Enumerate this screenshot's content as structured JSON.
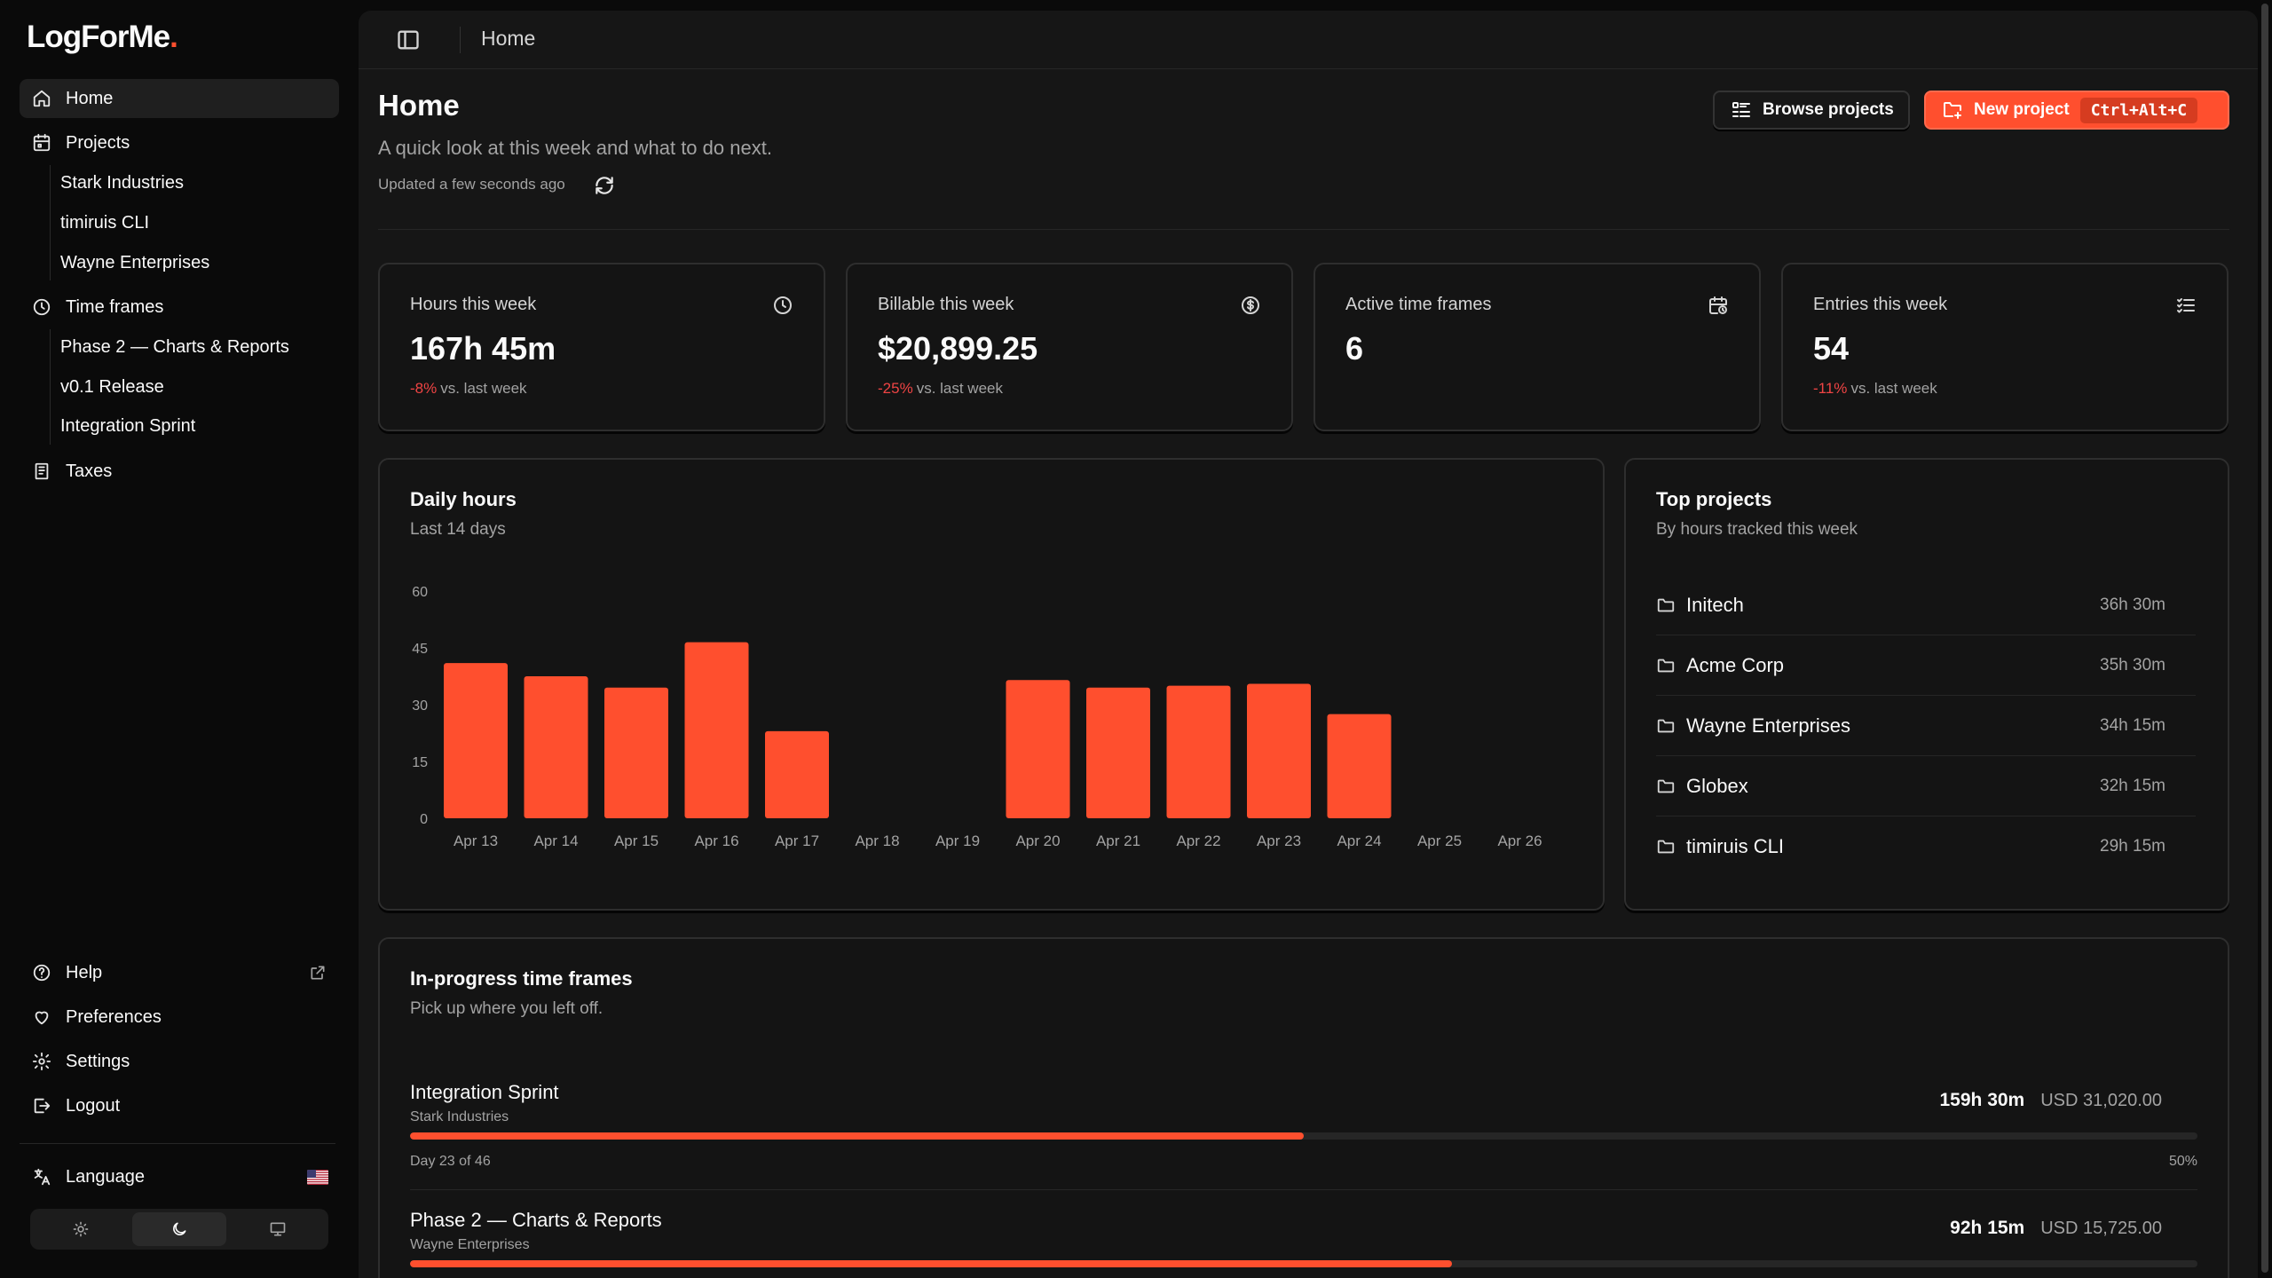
{
  "app": {
    "logo_text": "LogForMe",
    "logo_dot": "."
  },
  "sidebar": {
    "items": [
      {
        "label": "Home",
        "icon": "home-icon"
      },
      {
        "label": "Projects",
        "icon": "calendar-icon"
      },
      {
        "label": "Time frames",
        "icon": "clock-icon"
      },
      {
        "label": "Taxes",
        "icon": "receipt-icon"
      }
    ],
    "projects": [
      "Stark Industries",
      "timiruis CLI",
      "Wayne Enterprises"
    ],
    "time_frames": [
      "Phase 2 — Charts & Reports",
      "v0.1 Release",
      "Integration Sprint"
    ],
    "footer": {
      "help": "Help",
      "preferences": "Preferences",
      "settings": "Settings",
      "logout": "Logout",
      "language": "Language"
    },
    "theme_options": [
      "light",
      "dark",
      "system"
    ],
    "theme_selected": "dark"
  },
  "topbar": {
    "breadcrumb": "Home"
  },
  "header": {
    "title": "Home",
    "subtitle": "A quick look at this week and what to do next.",
    "updated": "Updated a few seconds ago",
    "browse_label": "Browse projects",
    "new_label": "New project",
    "new_shortcut": "Ctrl+Alt+C"
  },
  "stats": [
    {
      "label": "Hours this week",
      "value": "167h 45m",
      "delta": "-8%",
      "delta_suffix": "vs. last week",
      "icon": "clock-icon"
    },
    {
      "label": "Billable this week",
      "value": "$20,899.25",
      "delta": "-25%",
      "delta_suffix": "vs. last week",
      "icon": "dollar-icon"
    },
    {
      "label": "Active time frames",
      "value": "6",
      "delta": "",
      "delta_suffix": "",
      "icon": "calendar-clock-icon"
    },
    {
      "label": "Entries this week",
      "value": "54",
      "delta": "-11%",
      "delta_suffix": "vs. last week",
      "icon": "list-check-icon"
    }
  ],
  "daily": {
    "title": "Daily hours",
    "subtitle": "Last 14 days"
  },
  "chart_data": {
    "type": "bar",
    "title": "Daily hours",
    "subtitle": "Last 14 days",
    "categories": [
      "Apr 13",
      "Apr 14",
      "Apr 15",
      "Apr 16",
      "Apr 17",
      "Apr 18",
      "Apr 19",
      "Apr 20",
      "Apr 21",
      "Apr 22",
      "Apr 23",
      "Apr 24",
      "Apr 25",
      "Apr 26"
    ],
    "values": [
      41,
      37.5,
      34.5,
      46.5,
      23,
      0,
      0,
      36.5,
      34.5,
      35,
      35.5,
      27.5,
      0,
      0
    ],
    "yticks": [
      "0",
      "15",
      "30",
      "45",
      "60"
    ],
    "ylim": [
      0,
      60
    ],
    "color": "#ff4f2e",
    "grid": false
  },
  "top_projects": {
    "title": "Top projects",
    "subtitle": "By hours tracked this week",
    "items": [
      {
        "name": "Initech",
        "hours": "36h 30m"
      },
      {
        "name": "Acme Corp",
        "hours": "35h 30m"
      },
      {
        "name": "Wayne Enterprises",
        "hours": "34h 15m"
      },
      {
        "name": "Globex",
        "hours": "32h 15m"
      },
      {
        "name": "timiruis CLI",
        "hours": "29h 15m"
      }
    ]
  },
  "in_progress": {
    "title": "In-progress time frames",
    "subtitle": "Pick up where you left off.",
    "items": [
      {
        "name": "Integration Sprint",
        "client": "Stark Industries",
        "hours": "159h 30m",
        "amount": "USD 31,020.00",
        "day": "Day 23 of 46",
        "pct": "50%",
        "progress": 0.5
      },
      {
        "name": "Phase 2 — Charts & Reports",
        "client": "Wayne Enterprises",
        "hours": "92h 15m",
        "amount": "USD 15,725.00",
        "day": "",
        "pct": "",
        "progress": 0.583
      }
    ]
  },
  "colors": {
    "accent": "#ff4f2e",
    "negative": "#ef4444",
    "background": "#0a0a0a",
    "panel": "#161616"
  }
}
